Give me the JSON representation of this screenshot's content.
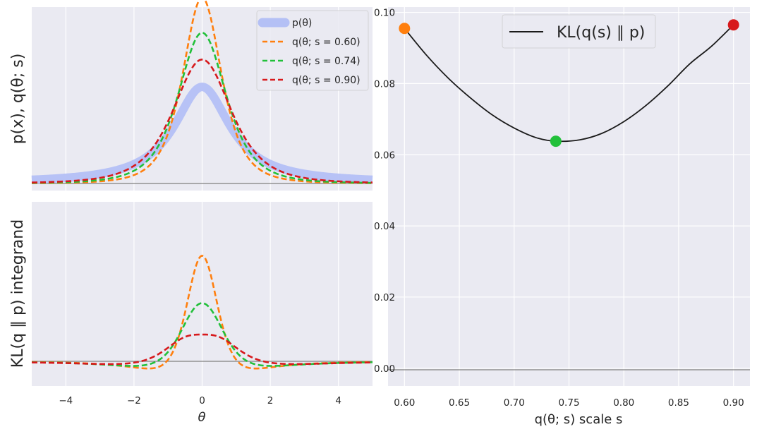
{
  "colors": {
    "background": "#eaeaf2",
    "grid": "#ffffff",
    "prior": "#b4c0f5",
    "s060": "#ff7f0e",
    "s074": "#22c03a",
    "s090": "#d7191c",
    "kl_curve": "#1a1a1a",
    "zero_line": "#808080"
  },
  "chart_data": [
    {
      "id": "densities",
      "type": "line",
      "xlabel": "",
      "ylabel": "p(x), q(θ; s)",
      "xlim": [
        -5,
        5
      ],
      "grid": true,
      "legend_position": "top-right",
      "series": [
        {
          "name": "p(θ)",
          "style": "thick-band",
          "color": "#b4c0f5",
          "family": "cauchy",
          "scale": 1.0,
          "sample_x": [
            -5,
            -2,
            -1,
            0,
            1,
            2,
            5
          ],
          "sample_y": [
            0.012,
            0.064,
            0.159,
            0.318,
            0.159,
            0.064,
            0.012
          ]
        },
        {
          "name": "q(θ; s = 0.60)",
          "style": "dashed",
          "color": "#ff7f0e",
          "family": "student-t",
          "scale": 0.6,
          "sample_x": [
            -5,
            -2,
            -1,
            0,
            1,
            2,
            5
          ],
          "sample_y": [
            0.006,
            0.045,
            0.141,
            0.53,
            0.141,
            0.045,
            0.006
          ]
        },
        {
          "name": "q(θ; s = 0.74)",
          "style": "dashed",
          "color": "#22c03a",
          "family": "student-t",
          "scale": 0.74,
          "sample_x": [
            -5,
            -2,
            -1,
            0,
            1,
            2,
            5
          ],
          "sample_y": [
            0.009,
            0.057,
            0.15,
            0.43,
            0.15,
            0.057,
            0.009
          ]
        },
        {
          "name": "q(θ; s = 0.90)",
          "style": "dashed",
          "color": "#d7191c",
          "family": "student-t",
          "scale": 0.9,
          "sample_x": [
            -5,
            -2,
            -1,
            0,
            1,
            2,
            5
          ],
          "sample_y": [
            0.012,
            0.067,
            0.154,
            0.354,
            0.154,
            0.067,
            0.012
          ]
        }
      ]
    },
    {
      "id": "integrand",
      "type": "line",
      "xlabel": "θ",
      "ylabel": "KL(q ∥ p) integrand",
      "xlim": [
        -5,
        5
      ],
      "xticks": [
        -4,
        -2,
        0,
        2,
        4
      ],
      "xtick_labels": [
        "−4",
        "−2",
        "0",
        "2",
        "4"
      ],
      "grid": true,
      "series": [
        {
          "name": "s = 0.60",
          "style": "dashed",
          "color": "#ff7f0e",
          "scale": 0.6
        },
        {
          "name": "s = 0.74",
          "style": "dashed",
          "color": "#22c03a",
          "scale": 0.74
        },
        {
          "name": "s = 0.90",
          "style": "dashed",
          "color": "#d7191c",
          "scale": 0.9
        }
      ]
    },
    {
      "id": "kl_vs_scale",
      "type": "line",
      "xlabel": "q(θ; s) scale s",
      "ylabel": "",
      "xlim": [
        0.585,
        0.915
      ],
      "ylim": [
        -0.005,
        0.1015
      ],
      "xticks": [
        0.6,
        0.65,
        0.7,
        0.75,
        0.8,
        0.85,
        0.9
      ],
      "xtick_labels": [
        "0.60",
        "0.65",
        "0.70",
        "0.75",
        "0.80",
        "0.85",
        "0.90"
      ],
      "yticks": [
        0.0,
        0.02,
        0.04,
        0.06,
        0.08,
        0.1
      ],
      "ytick_labels": [
        "0.00",
        "0.02",
        "0.04",
        "0.06",
        "0.08",
        "0.10"
      ],
      "grid": true,
      "legend_position": "top-center",
      "series": [
        {
          "name": "KL(q(s) ∥ p)",
          "color": "#1a1a1a",
          "x": [
            0.6,
            0.62,
            0.64,
            0.66,
            0.68,
            0.7,
            0.72,
            0.738,
            0.76,
            0.78,
            0.8,
            0.82,
            0.84,
            0.86,
            0.88,
            0.9
          ],
          "y": [
            0.0955,
            0.088,
            0.0815,
            0.076,
            0.0712,
            0.0675,
            0.0648,
            0.0638,
            0.0642,
            0.066,
            0.0693,
            0.0738,
            0.0793,
            0.0855,
            0.0905,
            0.0965
          ]
        }
      ],
      "markers": [
        {
          "name": "s = 0.60",
          "x": 0.6,
          "y": 0.0955,
          "color": "#ff7f0e"
        },
        {
          "name": "s = 0.74",
          "x": 0.738,
          "y": 0.0638,
          "color": "#22c03a"
        },
        {
          "name": "s = 0.90",
          "x": 0.9,
          "y": 0.0965,
          "color": "#d7191c"
        }
      ]
    }
  ]
}
